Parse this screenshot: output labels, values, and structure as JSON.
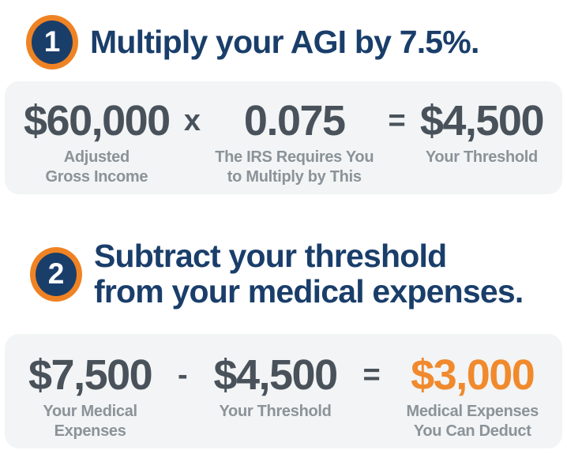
{
  "colors": {
    "navy": "#1a3e6a",
    "ring_orange": "#ef8324",
    "deduct_orange": "#f08a2d",
    "number_gray": "#49525a",
    "label_gray": "#8b9399",
    "box_background": "#f2f4f5",
    "page_background": "#ffffff",
    "badge_number_white": "#ffffff"
  },
  "step1": {
    "number": "1",
    "title": "Multiply your AGI by 7.5%.",
    "eq": {
      "t1": {
        "value": "$60,000",
        "label1": "Adjusted",
        "label2": "Gross Income"
      },
      "op1": "x",
      "t2": {
        "value": "0.075",
        "label1": "The IRS Requires You",
        "label2": "to Multiply by This"
      },
      "op2": "=",
      "t3": {
        "value": "$4,500",
        "label1": "Your Threshold"
      }
    }
  },
  "step2": {
    "number": "2",
    "title_line1": "Subtract your threshold",
    "title_line2": "from your medical expenses.",
    "eq": {
      "t1": {
        "value": "$7,500",
        "label1": "Your Medical",
        "label2": "Expenses"
      },
      "op1": "-",
      "t2": {
        "value": "$4,500",
        "label1": "Your Threshold"
      },
      "op2": "=",
      "t3": {
        "value": "$3,000",
        "label1": "Medical Expenses",
        "label2": "You Can Deduct"
      }
    }
  }
}
